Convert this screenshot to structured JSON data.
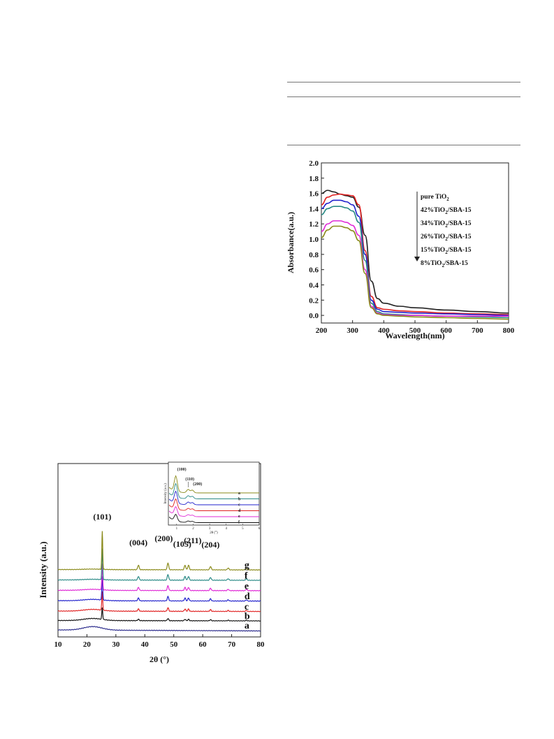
{
  "colors": {
    "a": "#2b2b8c",
    "b": "#111111",
    "c": "#e02222",
    "d": "#2222cc",
    "e": "#e02ad6",
    "f": "#2a8a86",
    "g": "#8a8a1a",
    "pure": "#222222"
  },
  "uv": {
    "chart_data": {
      "type": "line",
      "xlabel": "Wavelength(nm)",
      "ylabel": "Absorbance(a.u.)",
      "xlim": [
        200,
        800
      ],
      "ylim": [
        -0.1,
        2.0
      ],
      "xticks": [
        "200",
        "300",
        "400",
        "500",
        "600",
        "700",
        "800"
      ],
      "yticks": [
        "0.0",
        "0.2",
        "0.4",
        "0.6",
        "0.8",
        "1.0",
        "1.2",
        "1.4",
        "1.6",
        "1.8",
        "2.0"
      ],
      "legend_placement": "top-right, with downward arrow",
      "legend": [
        {
          "base": "pure TiO",
          "sub": "2",
          "rest": ""
        },
        {
          "base": "42%TiO",
          "sub": "2",
          "rest": "/SBA-15"
        },
        {
          "base": "34%TiO",
          "sub": "2",
          "rest": "/SBA-15"
        },
        {
          "base": "26%TiO",
          "sub": "2",
          "rest": "/SBA-15"
        },
        {
          "base": "15%TiO",
          "sub": "2",
          "rest": "/SBA-15"
        },
        {
          "base": "8%TiO",
          "sub": "2",
          "rest": "/SBA-15"
        }
      ],
      "series": [
        {
          "name": "pure TiO2",
          "color_key": "pure",
          "x": [
            200,
            220,
            240,
            260,
            280,
            300,
            320,
            340,
            360,
            380,
            400,
            450,
            500,
            600,
            700,
            800
          ],
          "values": [
            1.6,
            1.64,
            1.62,
            1.59,
            1.57,
            1.55,
            1.42,
            1.05,
            0.45,
            0.22,
            0.16,
            0.12,
            0.1,
            0.07,
            0.05,
            0.03
          ]
        },
        {
          "name": "42%TiO2/SBA-15",
          "color_key": "c",
          "x": [
            200,
            220,
            240,
            260,
            280,
            300,
            320,
            340,
            360,
            380,
            400,
            450,
            500,
            600,
            700,
            800
          ],
          "values": [
            1.45,
            1.55,
            1.58,
            1.59,
            1.58,
            1.57,
            1.45,
            0.85,
            0.25,
            0.1,
            0.08,
            0.06,
            0.05,
            0.03,
            0.02,
            0.01
          ]
        },
        {
          "name": "34%TiO2/SBA-15",
          "color_key": "d",
          "x": [
            200,
            220,
            240,
            260,
            280,
            300,
            320,
            340,
            360,
            380,
            400,
            450,
            500,
            600,
            700,
            800
          ],
          "values": [
            1.4,
            1.47,
            1.51,
            1.51,
            1.49,
            1.45,
            1.3,
            0.8,
            0.2,
            0.08,
            0.05,
            0.04,
            0.03,
            0.02,
            0.01,
            0.0
          ]
        },
        {
          "name": "26%TiO2/SBA-15",
          "color_key": "f",
          "x": [
            200,
            220,
            240,
            260,
            280,
            300,
            320,
            340,
            360,
            380,
            400,
            450,
            500,
            600,
            700,
            800
          ],
          "values": [
            1.32,
            1.4,
            1.43,
            1.43,
            1.41,
            1.37,
            1.22,
            0.72,
            0.16,
            0.05,
            0.02,
            0.01,
            0.0,
            -0.01,
            -0.02,
            -0.03
          ]
        },
        {
          "name": "15%TiO2/SBA-15",
          "color_key": "e",
          "x": [
            200,
            220,
            240,
            260,
            280,
            300,
            320,
            340,
            360,
            380,
            400,
            450,
            500,
            600,
            700,
            800
          ],
          "values": [
            1.1,
            1.2,
            1.24,
            1.24,
            1.22,
            1.18,
            1.05,
            0.6,
            0.12,
            0.03,
            0.01,
            0.0,
            0.0,
            -0.01,
            -0.01,
            -0.01
          ]
        },
        {
          "name": "8%TiO2/SBA-15",
          "color_key": "g",
          "x": [
            200,
            220,
            240,
            260,
            280,
            300,
            320,
            340,
            360,
            380,
            400,
            450,
            500,
            600,
            700,
            800
          ],
          "values": [
            1.02,
            1.12,
            1.17,
            1.17,
            1.15,
            1.11,
            0.98,
            0.55,
            0.1,
            0.02,
            0.0,
            -0.01,
            -0.02,
            -0.03,
            -0.04,
            -0.05
          ]
        }
      ]
    }
  },
  "xrd": {
    "chart_data": {
      "type": "line",
      "xlabel": "2θ (°)",
      "ylabel": "Intensity (a.u.)",
      "xlim": [
        10,
        80
      ],
      "xticks": [
        "10",
        "20",
        "30",
        "40",
        "50",
        "60",
        "70",
        "80"
      ],
      "peak_labels": [
        {
          "text": "(101)",
          "x": 25.3
        },
        {
          "text": "(004)",
          "x": 37.8
        },
        {
          "text": "(200)",
          "x": 48.0
        },
        {
          "text": "(105)",
          "x": 53.9
        },
        {
          "text": "(211)",
          "x": 55.1
        },
        {
          "text": "(204)",
          "x": 62.7
        }
      ],
      "curve_labels": [
        "a",
        "b",
        "c",
        "d",
        "e",
        "f",
        "g"
      ],
      "peaks": [
        {
          "x": 25.3,
          "rel": 1.0
        },
        {
          "x": 37.8,
          "rel": 0.12
        },
        {
          "x": 48.0,
          "rel": 0.18
        },
        {
          "x": 53.9,
          "rel": 0.12
        },
        {
          "x": 55.1,
          "rel": 0.12
        },
        {
          "x": 62.7,
          "rel": 0.09
        },
        {
          "x": 68.8,
          "rel": 0.05
        },
        {
          "x": 75.1,
          "rel": 0.05
        }
      ],
      "series": [
        {
          "name": "a",
          "color_key": "a",
          "offset": 0.0,
          "scale": 0.0,
          "hump": 1.0
        },
        {
          "name": "b",
          "color_key": "b",
          "offset": 1.0,
          "scale": 0.5,
          "hump": 0.6
        },
        {
          "name": "c",
          "color_key": "c",
          "offset": 2.0,
          "scale": 0.8,
          "hump": 0.5
        },
        {
          "name": "d",
          "color_key": "d",
          "offset": 3.1,
          "scale": 1.0,
          "hump": 0.4
        },
        {
          "name": "e",
          "color_key": "e",
          "offset": 4.2,
          "scale": 1.1,
          "hump": 0.3
        },
        {
          "name": "f",
          "color_key": "f",
          "offset": 5.3,
          "scale": 1.3,
          "hump": 0.2
        },
        {
          "name": "g",
          "color_key": "g",
          "offset": 6.4,
          "scale": 1.6,
          "hump": 0.15
        }
      ],
      "inset": {
        "xlabel": "2θ (°)",
        "ylabel": "Intensity (a.u.)",
        "xticks": [
          "1",
          "2",
          "3",
          "4",
          "5",
          "6"
        ],
        "peak_labels": [
          "(100)",
          "(110)",
          "(200)"
        ],
        "curve_labels": [
          "a",
          "b",
          "c",
          "d",
          "e",
          "f"
        ]
      }
    }
  }
}
